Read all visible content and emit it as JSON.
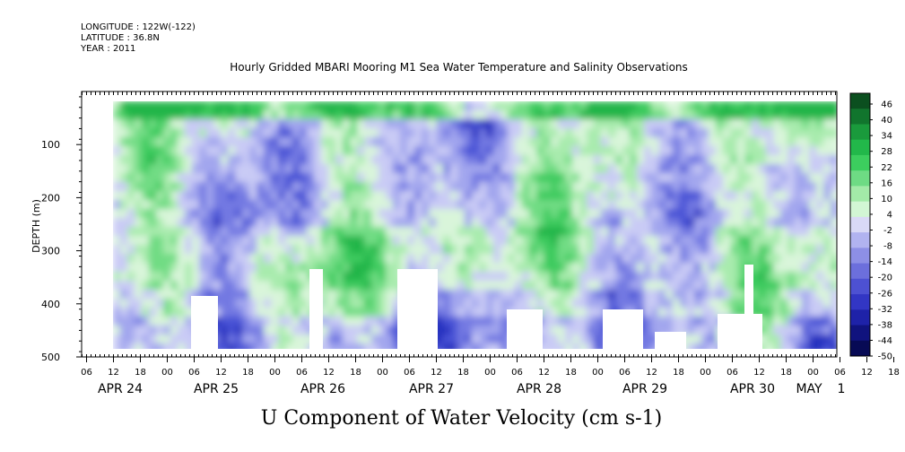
{
  "header": {
    "longitude": "LONGITUDE : 122W(-122)",
    "latitude": "LATITUDE : 36.8N",
    "year": "YEAR : 2011"
  },
  "chart_data": {
    "type": "heatmap",
    "title": "Hourly Gridded MBARI Mooring M1 Sea Water Temperature and Salinity Observations",
    "xlabel": "U Component of Water Velocity (cm s-1)",
    "ylabel": "DEPTH (m)",
    "ylim": [
      500,
      0
    ],
    "y_ticks": [
      100,
      200,
      300,
      400,
      500
    ],
    "x_hour_ticks": [
      "06",
      "12",
      "18",
      "00",
      "06",
      "12",
      "18",
      "00",
      "06",
      "12",
      "18",
      "00",
      "06",
      "12",
      "18",
      "00",
      "06",
      "12",
      "18",
      "00",
      "06",
      "12",
      "18",
      "00",
      "06",
      "12",
      "18",
      "00",
      "06",
      "12",
      "18",
      "00"
    ],
    "x_day_labels": [
      "APR 24",
      "APR 25",
      "APR 26",
      "APR 27",
      "APR 28",
      "APR 29",
      "APR 30",
      "MAY",
      "1"
    ],
    "data_depth_range_m": [
      20,
      485
    ],
    "colorbar": {
      "levels": [
        46,
        40,
        34,
        28,
        22,
        16,
        10,
        4,
        -2,
        -8,
        -14,
        -20,
        -26,
        -32,
        -38,
        -44,
        -50
      ],
      "colors_high": [
        "#0b4f1f",
        "#11752d",
        "#1a9a3c",
        "#22b84a",
        "#3cce5e",
        "#6edb84",
        "#a3eaa8",
        "#d2f6d4"
      ],
      "colors_low": [
        "#d9d9f6",
        "#b1b3f0",
        "#8d8fe6",
        "#6c6fdc",
        "#4d51d2",
        "#3236c4",
        "#1e22a8",
        "#10137e",
        "#070a55"
      ]
    }
  }
}
